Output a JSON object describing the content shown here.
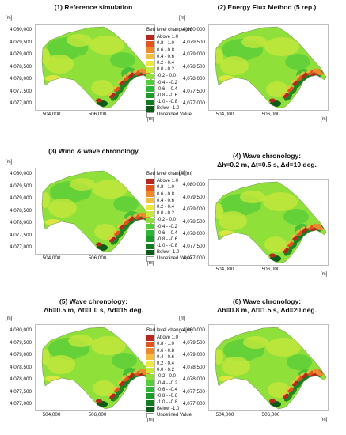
{
  "panels": [
    {
      "title": "(1) Reference simulation",
      "has_legend": true
    },
    {
      "title": "(2) Energy Flux Method (5 rep.)",
      "has_legend": false
    },
    {
      "title": "(3) Wind & wave chronology",
      "has_legend": true
    },
    {
      "title": "(4) Wave chronology:\nΔh=0.2 m, Δt=0.5 s, Δd=10 deg.",
      "has_legend": false
    },
    {
      "title": "(5) Wave chronology:\nΔh=0.5 m, Δt=1.0 s, Δd=15 deg.",
      "has_legend": true
    },
    {
      "title": "(6) Wave chronology:\nΔh=0.8 m, Δt=1.5 s, Δd=20 deg.",
      "has_legend": false
    }
  ],
  "axes": {
    "unit_label": "[m]",
    "y_ticks": [
      "4,080,000",
      "4,079,500",
      "4,079,000",
      "4,078,500",
      "4,078,000",
      "4,077,500",
      "4,077,000"
    ],
    "x_ticks": [
      "504,000",
      "506,000"
    ]
  },
  "legend": {
    "title": "Bed level change [m]",
    "items": [
      {
        "label": "Above  1.0",
        "color": "#b5281e"
      },
      {
        "label": "0.8 -  1.0",
        "color": "#e0541f"
      },
      {
        "label": "0.6 -  0.8",
        "color": "#ee8a2d"
      },
      {
        "label": "0.4 -  0.6",
        "color": "#f4bd3e"
      },
      {
        "label": "0.2 -  0.4",
        "color": "#efe742"
      },
      {
        "label": "0.0 -  0.2",
        "color": "#c8e83c"
      },
      {
        "label": "-0.2 -  0.0",
        "color": "#8fe03a"
      },
      {
        "label": "-0.4 - -0.2",
        "color": "#55cc3a"
      },
      {
        "label": "-0.6 - -0.4",
        "color": "#2fb535"
      },
      {
        "label": "-0.8 - -0.6",
        "color": "#1e9a2d"
      },
      {
        "label": "-1.0 - -0.8",
        "color": "#137a22"
      },
      {
        "label": "Below -1.0",
        "color": "#0b5a17"
      },
      {
        "label": "Undefined Value",
        "color": "#ffffff"
      }
    ]
  }
}
